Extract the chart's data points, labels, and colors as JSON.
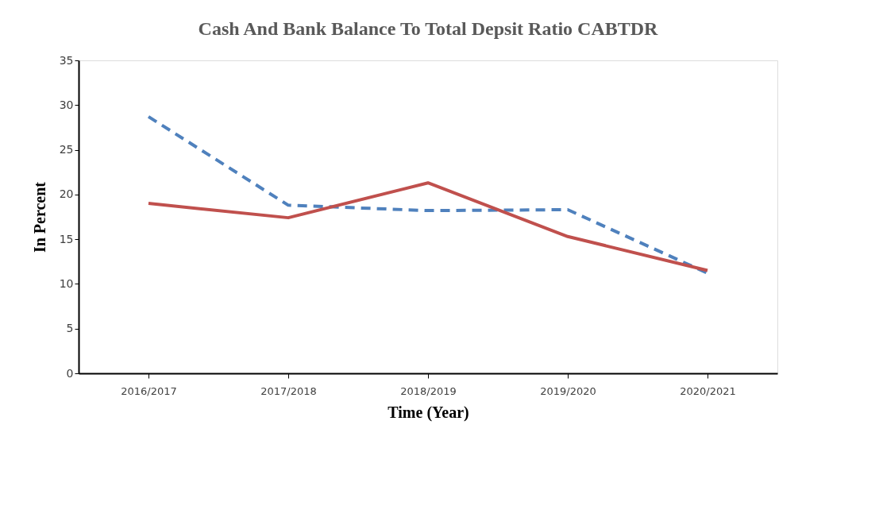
{
  "chart_data": {
    "type": "line",
    "title": "Cash And Bank Balance To Total Depsit Ratio CABTDR",
    "xlabel": "Time (Year)",
    "ylabel": "In Percent",
    "categories": [
      "2016/2017",
      "2017/2018",
      "2018/2019",
      "2019/2020",
      "2020/2021"
    ],
    "series": [
      {
        "color": "#4f81bd",
        "line_style": "dashed",
        "values": [
          28.7,
          18.8,
          18.2,
          18.3,
          11.2
        ]
      },
      {
        "color": "#c0504d",
        "line_style": "solid",
        "values": [
          19.0,
          17.4,
          21.3,
          15.3,
          11.5
        ]
      }
    ],
    "ylim": [
      0,
      35
    ],
    "yticks": [
      0,
      5,
      10,
      15,
      20,
      25,
      30,
      35
    ],
    "grid": false
  }
}
